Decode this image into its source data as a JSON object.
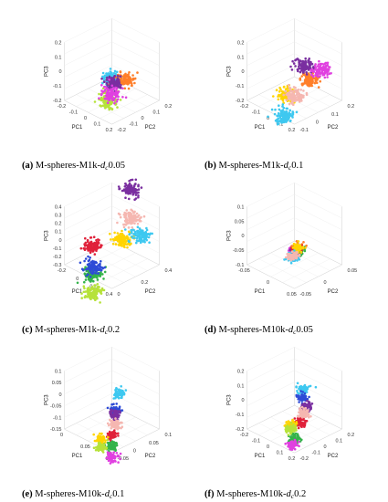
{
  "figure": {
    "panels": [
      {
        "id": "a",
        "letter": "(a)",
        "caption_prefix": "M-spheres-M1k-",
        "caption_var": "d",
        "caption_sub": "c",
        "caption_value": "0.05",
        "axes": {
          "x": {
            "label": "PC1",
            "ticks": [
              "-0.2",
              "-0.1",
              "0",
              "0.1",
              "0.2"
            ]
          },
          "y": {
            "label": "PC2",
            "ticks": [
              "-0.2",
              "-0.1",
              "0",
              "0.1",
              "0.2"
            ]
          },
          "z": {
            "label": "PC3",
            "ticks": [
              "0.2",
              "0.1",
              "0",
              "-0.1",
              "-0.2"
            ]
          }
        }
      },
      {
        "id": "b",
        "letter": "(b)",
        "caption_prefix": "M-spheres-M1k-",
        "caption_var": "d",
        "caption_sub": "c",
        "caption_value": "0.1",
        "axes": {
          "x": {
            "label": "PC1",
            "ticks": [
              "-0.2",
              "-0.1",
              "0",
              "0.1",
              "0.2"
            ]
          },
          "y": {
            "label": "PC2",
            "ticks": [
              "-0.1",
              "0",
              "0.1",
              "0.2"
            ]
          },
          "z": {
            "label": "PC3",
            "ticks": [
              "0.2",
              "0.1",
              "0",
              "-0.1",
              "-0.2"
            ]
          }
        }
      },
      {
        "id": "c",
        "letter": "(c)",
        "caption_prefix": "M-spheres-M1k-",
        "caption_var": "d",
        "caption_sub": "c",
        "caption_value": "0.2",
        "axes": {
          "x": {
            "label": "PC1",
            "ticks": [
              "-0.2",
              "0",
              "0.2",
              "0.4"
            ]
          },
          "y": {
            "label": "PC2",
            "ticks": [
              "0",
              "0.2",
              "0.4"
            ]
          },
          "z": {
            "label": "PC3",
            "ticks": [
              "0.4",
              "0.3",
              "0.2",
              "0.1",
              "0",
              "-0.1",
              "-0.2",
              "-0.3"
            ]
          }
        }
      },
      {
        "id": "d",
        "letter": "(d)",
        "caption_prefix": "M-spheres-M10k-",
        "caption_var": "d",
        "caption_sub": "c",
        "caption_value": "0.05",
        "axes": {
          "x": {
            "label": "PC1",
            "ticks": [
              "-0.05",
              "0",
              "0.05"
            ]
          },
          "y": {
            "label": "PC2",
            "ticks": [
              "-0.05",
              "0",
              "0.05"
            ]
          },
          "z": {
            "label": "PC3",
            "ticks": [
              "0.1",
              "0.05",
              "0",
              "-0.05",
              "-0.1"
            ]
          }
        }
      },
      {
        "id": "e",
        "letter": "(e)",
        "caption_prefix": "M-spheres-M10k-",
        "caption_var": "d",
        "caption_sub": "c",
        "caption_value": "0.1",
        "axes": {
          "x": {
            "label": "PC1",
            "ticks": [
              "0",
              "0.05",
              "0.1"
            ]
          },
          "y": {
            "label": "PC2",
            "ticks": [
              "-0.05",
              "0",
              "0.05",
              "0.1"
            ]
          },
          "z": {
            "label": "PC3",
            "ticks": [
              "0.1",
              "0.05",
              "0",
              "-0.05",
              "-0.1",
              "-0.15"
            ]
          }
        }
      },
      {
        "id": "f",
        "letter": "(f)",
        "caption_prefix": "M-spheres-M10k-",
        "caption_var": "d",
        "caption_sub": "c",
        "caption_value": "0.2",
        "axes": {
          "x": {
            "label": "PC1",
            "ticks": [
              "-0.2",
              "-0.1",
              "0",
              "0.1",
              "0.2"
            ]
          },
          "y": {
            "label": "PC2",
            "ticks": [
              "-0.2",
              "-0.1",
              "0",
              "0.1",
              "0.2"
            ]
          },
          "z": {
            "label": "PC3",
            "ticks": [
              "0.2",
              "0.1",
              "0",
              "-0.1",
              "-0.2"
            ]
          }
        }
      }
    ]
  },
  "chart_data": [
    {
      "type": "scatter",
      "projection": "3d",
      "title": "",
      "xlabel": "PC1",
      "ylabel": "PC2",
      "zlabel": "PC3",
      "clusters": [
        {
          "color": "#3ec8f0",
          "center": [
            0.0,
            0.0,
            0.06
          ]
        },
        {
          "color": "#ff7f2a",
          "center": [
            -0.05,
            0.02,
            0.03
          ]
        },
        {
          "color": "#b6e23a",
          "center": [
            0.12,
            0.1,
            0.05
          ]
        },
        {
          "color": "#7a2fa0",
          "center": [
            -0.04,
            -0.03,
            -0.01
          ]
        },
        {
          "color": "#e040e0",
          "center": [
            0.0,
            0.0,
            -0.05
          ]
        }
      ]
    },
    {
      "type": "scatter",
      "projection": "3d",
      "title": "",
      "xlabel": "PC1",
      "ylabel": "PC2",
      "zlabel": "PC3",
      "clusters": [
        {
          "color": "#ff7f2a",
          "center": [
            0.02,
            0.1,
            0.13
          ]
        },
        {
          "color": "#7a2fa0",
          "center": [
            -0.1,
            -0.05,
            0.05
          ]
        },
        {
          "color": "#e040e0",
          "center": [
            -0.14,
            0.0,
            0.03
          ]
        },
        {
          "color": "#ffd400",
          "center": [
            0.06,
            0.02,
            0.0
          ]
        },
        {
          "color": "#3ec8f0",
          "center": [
            0.1,
            0.05,
            -0.1
          ]
        },
        {
          "color": "#f5b7b1",
          "center": [
            0.03,
            0.03,
            -0.02
          ]
        }
      ]
    },
    {
      "type": "scatter",
      "projection": "3d",
      "title": "",
      "xlabel": "PC1",
      "ylabel": "PC2",
      "zlabel": "PC3",
      "clusters": [
        {
          "color": "#7a2fa0",
          "center": [
            -0.15,
            -0.05,
            0.3
          ]
        },
        {
          "color": "#f5b7b1",
          "center": [
            -0.15,
            -0.05,
            0.1
          ]
        },
        {
          "color": "#ffd400",
          "center": [
            -0.05,
            0.0,
            0.05
          ]
        },
        {
          "color": "#3ec8f0",
          "center": [
            -0.2,
            -0.05,
            -0.05
          ]
        },
        {
          "color": "#e0213a",
          "center": [
            0.1,
            0.0,
            0.1
          ]
        },
        {
          "color": "#33b34a",
          "center": [
            0.25,
            0.15,
            0.1
          ]
        },
        {
          "color": "#2e4bd6",
          "center": [
            0.15,
            0.05,
            0.02
          ]
        },
        {
          "color": "#b6e23a",
          "center": [
            0.15,
            0.05,
            -0.15
          ]
        }
      ]
    },
    {
      "type": "scatter",
      "projection": "3d",
      "title": "",
      "xlabel": "PC1",
      "ylabel": "PC2",
      "zlabel": "PC3",
      "clusters": [
        {
          "color": "#e040e0",
          "center": [
            0.05,
            0.05,
            0.08
          ]
        },
        {
          "color": "#ff7f2a",
          "center": [
            -0.03,
            0.0,
            0.03
          ]
        },
        {
          "color": "#7a2fa0",
          "center": [
            -0.01,
            0.01,
            0.02
          ]
        },
        {
          "color": "#33b34a",
          "center": [
            -0.02,
            0.02,
            0.01
          ]
        },
        {
          "color": "#e0213a",
          "center": [
            -0.04,
            -0.01,
            0.0
          ]
        },
        {
          "color": "#ffd400",
          "center": [
            -0.07,
            -0.03,
            -0.02
          ]
        },
        {
          "color": "#3ec8f0",
          "center": [
            0.05,
            0.03,
            -0.03
          ]
        },
        {
          "color": "#f5b7b1",
          "center": [
            0.02,
            0.0,
            -0.05
          ]
        }
      ]
    },
    {
      "type": "scatter",
      "projection": "3d",
      "title": "",
      "xlabel": "PC1",
      "ylabel": "PC2",
      "zlabel": "PC3",
      "clusters": [
        {
          "color": "#3ec8f0",
          "center": [
            0.0,
            0.02,
            0.09
          ]
        },
        {
          "color": "#2e4bd6",
          "center": [
            0.01,
            0.02,
            0.04
          ]
        },
        {
          "color": "#7a2fa0",
          "center": [
            -0.01,
            0.0,
            0.0
          ]
        },
        {
          "color": "#e0213a",
          "center": [
            0.05,
            0.05,
            0.0
          ]
        },
        {
          "color": "#33b34a",
          "center": [
            0.08,
            0.08,
            0.0
          ]
        },
        {
          "color": "#e040e0",
          "center": [
            0.11,
            0.11,
            0.0
          ]
        },
        {
          "color": "#f5b7b1",
          "center": [
            -0.03,
            -0.02,
            -0.06
          ]
        },
        {
          "color": "#ffd400",
          "center": [
            0.03,
            0.0,
            -0.06
          ]
        },
        {
          "color": "#b6e23a",
          "center": [
            0.02,
            -0.01,
            -0.1
          ]
        }
      ]
    },
    {
      "type": "scatter",
      "projection": "3d",
      "title": "",
      "xlabel": "PC1",
      "ylabel": "PC2",
      "zlabel": "PC3",
      "clusters": [
        {
          "color": "#3ec8f0",
          "center": [
            -0.05,
            0.0,
            0.15
          ]
        },
        {
          "color": "#2e4bd6",
          "center": [
            -0.04,
            0.0,
            0.1
          ]
        },
        {
          "color": "#7a2fa0",
          "center": [
            -0.08,
            -0.02,
            0.0
          ]
        },
        {
          "color": "#e0213a",
          "center": [
            0.02,
            0.05,
            0.0
          ]
        },
        {
          "color": "#33b34a",
          "center": [
            0.12,
            0.12,
            0.0
          ]
        },
        {
          "color": "#e040e0",
          "center": [
            0.16,
            0.15,
            0.0
          ]
        },
        {
          "color": "#f5b7b1",
          "center": [
            -0.1,
            -0.05,
            -0.08
          ]
        },
        {
          "color": "#ffd400",
          "center": [
            0.0,
            -0.02,
            -0.08
          ]
        },
        {
          "color": "#b6e23a",
          "center": [
            -0.01,
            -0.03,
            -0.12
          ]
        }
      ]
    }
  ]
}
